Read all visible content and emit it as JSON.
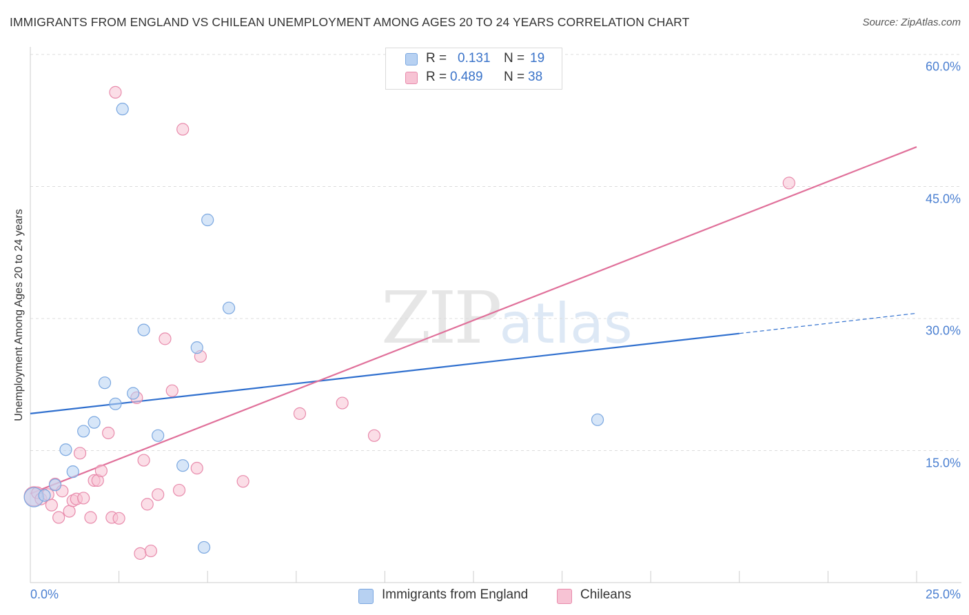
{
  "header": {
    "title": "IMMIGRANTS FROM ENGLAND VS CHILEAN UNEMPLOYMENT AMONG AGES 20 TO 24 YEARS CORRELATION CHART",
    "source": "Source: ZipAtlas.com"
  },
  "watermark": {
    "zip": "ZIP",
    "atlas": "atlas"
  },
  "legend_top": {
    "rows": [
      {
        "r_label": "R =",
        "r_value": "0.131",
        "n_label": "N =",
        "n_value": "19"
      },
      {
        "r_label": "R =",
        "r_value": "0.489",
        "n_label": "N =",
        "n_value": "38"
      }
    ]
  },
  "legend_bottom": {
    "series1": "Immigrants from England",
    "series2": "Chileans"
  },
  "colors": {
    "blue_fill": "#b7d1f2",
    "blue_stroke": "#7aa7e0",
    "blue_line": "#2f6fce",
    "pink_fill": "#f7c3d4",
    "pink_stroke": "#e88aab",
    "pink_line": "#e0709a",
    "axis_text": "#4a7fd1"
  },
  "chart_data": {
    "type": "scatter",
    "title": "IMMIGRANTS FROM ENGLAND VS CHILEAN UNEMPLOYMENT AMONG AGES 20 TO 24 YEARS CORRELATION CHART",
    "xlabel": "",
    "ylabel": "Unemployment Among Ages 20 to 24 years",
    "xlim": [
      0,
      25
    ],
    "ylim": [
      0,
      60
    ],
    "x_ticks": [
      {
        "value": 0,
        "label": "0.0%"
      },
      {
        "value": 25,
        "label": "25.0%"
      }
    ],
    "y_ticks": [
      {
        "value": 15,
        "label": "15.0%"
      },
      {
        "value": 30,
        "label": "30.0%"
      },
      {
        "value": 45,
        "label": "45.0%"
      },
      {
        "value": 60,
        "label": "60.0%"
      }
    ],
    "grid": "horizontal dashed",
    "series": [
      {
        "name": "Immigrants from England",
        "r": 0.131,
        "n": 19,
        "points": [
          [
            0.1,
            9.7
          ],
          [
            0.4,
            9.9
          ],
          [
            0.7,
            11.1
          ],
          [
            1.0,
            15.1
          ],
          [
            1.2,
            12.6
          ],
          [
            1.5,
            17.2
          ],
          [
            1.8,
            18.2
          ],
          [
            2.1,
            22.7
          ],
          [
            2.4,
            20.3
          ],
          [
            2.6,
            53.8
          ],
          [
            2.9,
            21.5
          ],
          [
            3.2,
            28.7
          ],
          [
            3.6,
            16.7
          ],
          [
            4.3,
            13.3
          ],
          [
            4.7,
            26.7
          ],
          [
            4.9,
            4.0
          ],
          [
            5.0,
            41.2
          ],
          [
            5.6,
            31.2
          ],
          [
            16.0,
            18.5
          ]
        ],
        "trend": {
          "x0": 0,
          "y0": 19.2,
          "x1": 20,
          "y1": 28.3,
          "dashed_to_x": 25,
          "dashed_to_y": 30.6
        }
      },
      {
        "name": "Chileans",
        "r": 0.489,
        "n": 38,
        "points": [
          [
            0.1,
            9.8
          ],
          [
            0.2,
            10.2
          ],
          [
            0.3,
            9.5
          ],
          [
            0.5,
            10.0
          ],
          [
            0.6,
            8.8
          ],
          [
            0.7,
            11.2
          ],
          [
            0.8,
            7.4
          ],
          [
            0.9,
            10.4
          ],
          [
            1.1,
            8.1
          ],
          [
            1.2,
            9.3
          ],
          [
            1.3,
            9.5
          ],
          [
            1.4,
            14.7
          ],
          [
            1.5,
            9.6
          ],
          [
            1.7,
            7.4
          ],
          [
            1.8,
            11.6
          ],
          [
            1.9,
            11.6
          ],
          [
            2.0,
            12.7
          ],
          [
            2.2,
            17.0
          ],
          [
            2.3,
            7.4
          ],
          [
            2.5,
            7.3
          ],
          [
            2.4,
            55.7
          ],
          [
            3.0,
            21.0
          ],
          [
            3.1,
            3.3
          ],
          [
            3.2,
            13.9
          ],
          [
            3.3,
            8.9
          ],
          [
            3.4,
            3.6
          ],
          [
            3.6,
            10.0
          ],
          [
            3.8,
            27.7
          ],
          [
            4.0,
            21.8
          ],
          [
            4.2,
            10.5
          ],
          [
            4.3,
            51.5
          ],
          [
            4.7,
            13.0
          ],
          [
            4.8,
            25.7
          ],
          [
            6.0,
            11.5
          ],
          [
            7.6,
            19.2
          ],
          [
            8.8,
            20.4
          ],
          [
            9.7,
            16.7
          ],
          [
            21.4,
            45.4
          ]
        ],
        "trend": {
          "x0": 0,
          "y0": 10.1,
          "x1": 25,
          "y1": 49.5
        }
      }
    ]
  }
}
